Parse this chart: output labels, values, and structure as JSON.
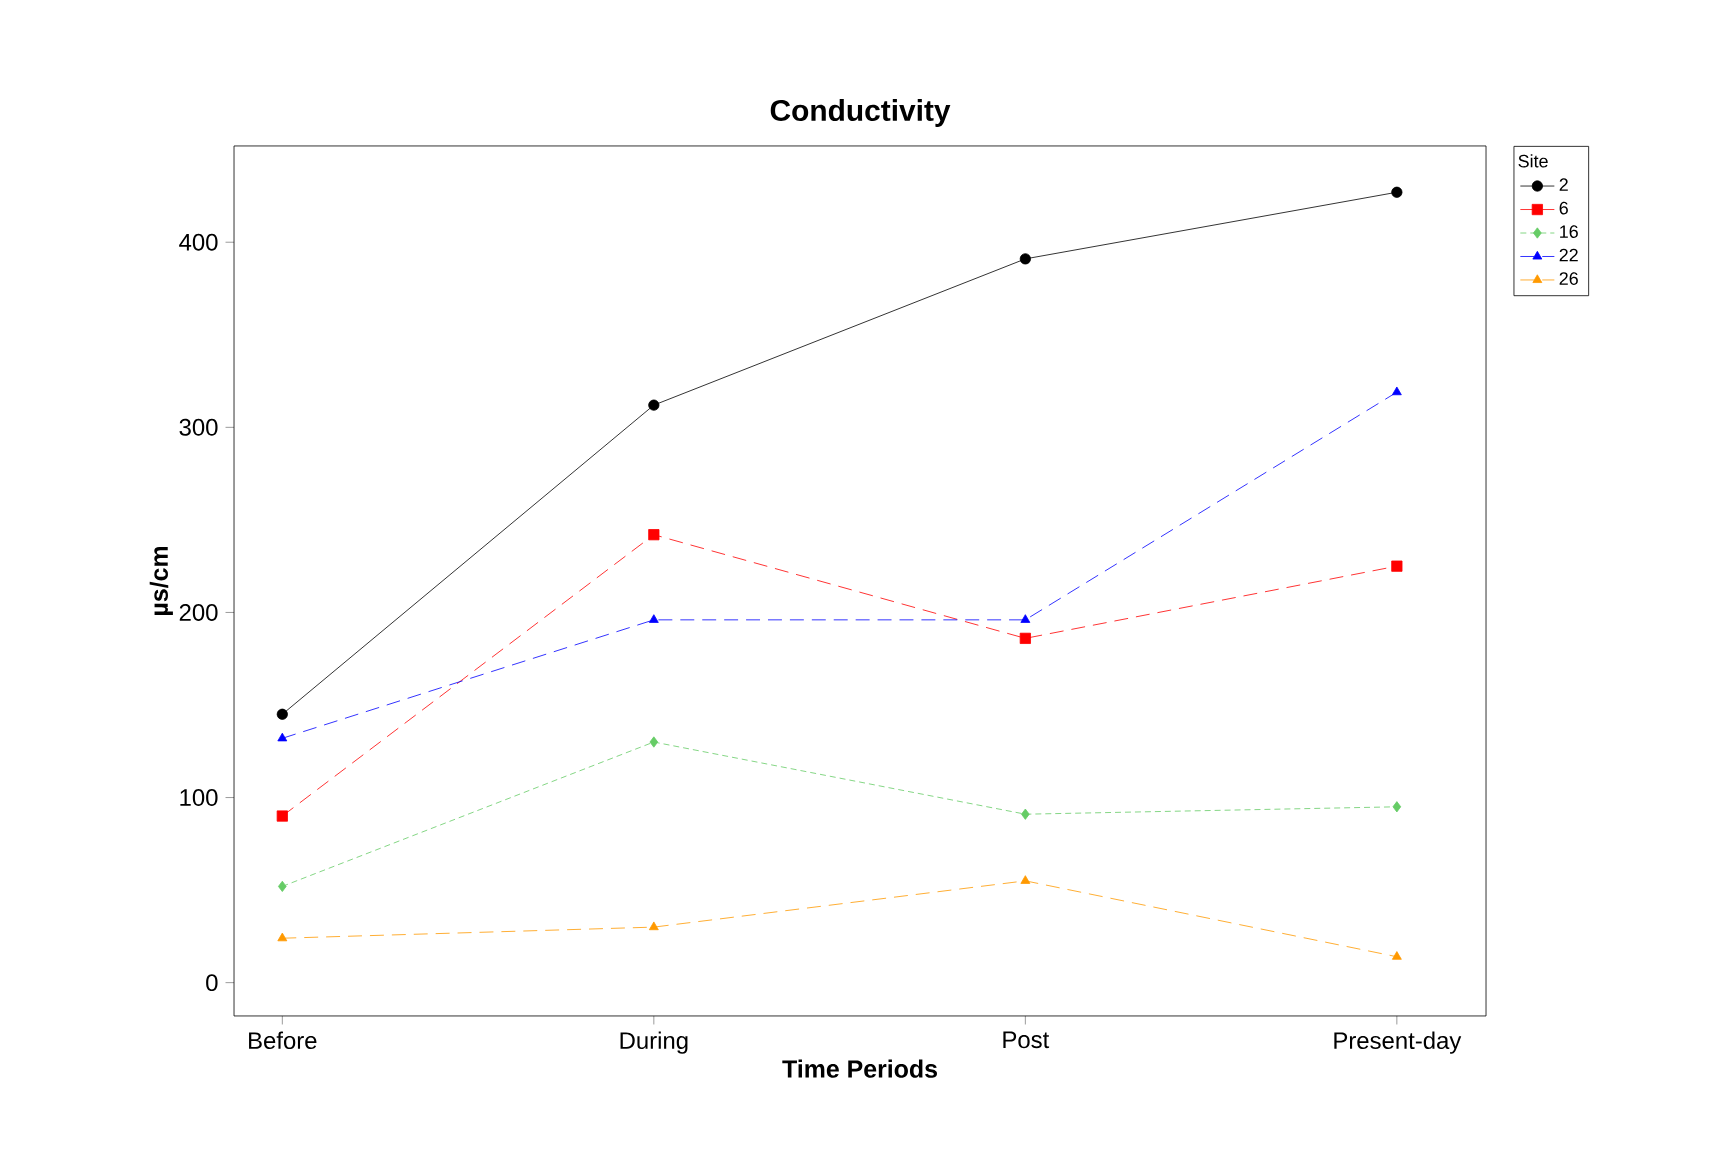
{
  "chart_data": {
    "type": "line",
    "title": "Conductivity",
    "xlabel": "Time Periods",
    "ylabel": "µs/cm",
    "legend_title": "Site",
    "legend": "top right",
    "grid": false,
    "categories": [
      "Before",
      "During",
      "Post",
      "Present-day"
    ],
    "ylim": [
      -18,
      452
    ],
    "yticks": [
      0,
      100,
      200,
      300,
      400
    ],
    "series": [
      {
        "name": "2",
        "color": "#000000",
        "marker": "circle",
        "line_style": "solid",
        "values": [
          145,
          312,
          391,
          427
        ]
      },
      {
        "name": "6",
        "color": "#ff0000",
        "marker": "square",
        "line_style": "dashed",
        "values": [
          90,
          242,
          186,
          225
        ]
      },
      {
        "name": "16",
        "color": "#66cc66",
        "marker": "diamond",
        "line_style": "dotted",
        "values": [
          52,
          130,
          91,
          95
        ]
      },
      {
        "name": "22",
        "color": "#0000ff",
        "marker": "triangle",
        "line_style": "dashed",
        "values": [
          132,
          196,
          196,
          319
        ]
      },
      {
        "name": "26",
        "color": "#ff9900",
        "marker": "triangle",
        "line_style": "dashed",
        "values": [
          24,
          30,
          55,
          14
        ]
      }
    ]
  }
}
